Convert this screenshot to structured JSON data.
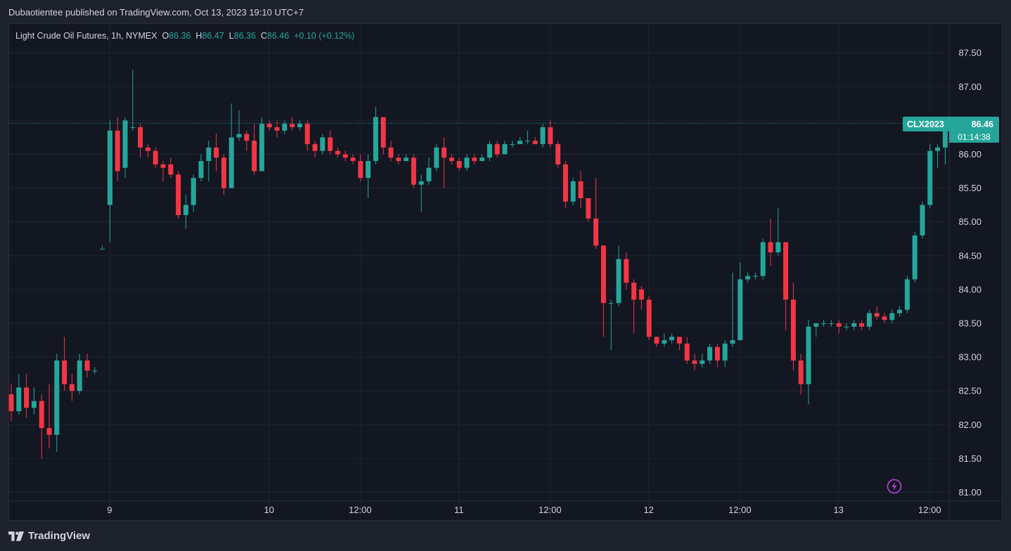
{
  "header": {
    "published": "Dubaotientee published on TradingView.com, Oct 13, 2023 19:10 UTC+7"
  },
  "legend": {
    "symbol": "Light Crude Oil Futures, 1h, NYMEX",
    "open_label": "O",
    "open": "86.36",
    "high_label": "H",
    "high": "86.47",
    "low_label": "L",
    "low": "86.36",
    "close_label": "C",
    "close": "86.46",
    "change": "+0.10 (+0.12%)"
  },
  "price_tag": {
    "symbol": "CLX2023",
    "price": "86.46",
    "countdown": "01:14:38"
  },
  "footer": {
    "brand": "TradingView"
  },
  "icons": {
    "brand_logo": "tradingview-logo-icon",
    "flash": "lightning-bolt-icon"
  },
  "colors": {
    "up": "#26a69a",
    "down": "#f23645",
    "background": "#131722",
    "grid": "#1f2330",
    "text": "#d1d4dc",
    "last_price_line": "#26a69a"
  },
  "chart_data": {
    "type": "candlestick",
    "title": "Light Crude Oil Futures, 1h, NYMEX",
    "ylim": [
      80.9,
      87.7
    ],
    "y_ticks": [
      "87.50",
      "87.00",
      "86.50",
      "86.00",
      "85.50",
      "85.00",
      "84.50",
      "84.00",
      "83.50",
      "83.00",
      "82.50",
      "82.00",
      "81.50",
      "81.00"
    ],
    "x_ticks": [
      {
        "label": "9",
        "index": 13
      },
      {
        "label": "10",
        "index": 34
      },
      {
        "label": "12:00",
        "index": 46
      },
      {
        "label": "11",
        "index": 59
      },
      {
        "label": "12:00",
        "index": 71
      },
      {
        "label": "12",
        "index": 84
      },
      {
        "label": "12:00",
        "index": 96
      },
      {
        "label": "13",
        "index": 109
      },
      {
        "label": "12:00",
        "index": 121
      }
    ],
    "last_price": 86.46,
    "candles": [
      [
        82.45,
        82.2,
        82.6,
        82.05
      ],
      [
        82.2,
        82.55,
        82.75,
        82.15
      ],
      [
        82.55,
        82.25,
        82.75,
        82.1
      ],
      [
        82.25,
        82.35,
        82.55,
        82.15
      ],
      [
        82.35,
        81.95,
        82.45,
        81.5
      ],
      [
        81.95,
        81.85,
        82.6,
        81.65
      ],
      [
        81.85,
        82.95,
        83.05,
        81.6
      ],
      [
        82.95,
        82.6,
        83.3,
        82.5
      ],
      [
        82.6,
        82.5,
        82.75,
        82.35
      ],
      [
        82.5,
        82.95,
        83.05,
        82.45
      ],
      [
        82.95,
        82.8,
        83.05,
        82.7
      ],
      [
        82.8,
        82.8,
        82.85,
        82.75
      ],
      [
        84.6,
        84.6,
        84.65,
        84.6
      ],
      [
        85.25,
        86.35,
        86.5,
        84.7
      ],
      [
        86.35,
        85.75,
        86.55,
        85.6
      ],
      [
        85.8,
        86.5,
        86.55,
        85.65
      ],
      [
        86.4,
        86.4,
        87.25,
        86.35
      ],
      [
        86.4,
        86.1,
        86.45,
        85.95
      ],
      [
        86.1,
        86.05,
        86.15,
        85.95
      ],
      [
        86.05,
        85.85,
        86.1,
        85.8
      ],
      [
        85.85,
        85.8,
        85.9,
        85.6
      ],
      [
        85.85,
        85.7,
        85.95,
        85.65
      ],
      [
        85.7,
        85.1,
        85.75,
        85.05
      ],
      [
        85.1,
        85.25,
        85.4,
        84.9
      ],
      [
        85.25,
        85.65,
        85.7,
        85.15
      ],
      [
        85.65,
        85.9,
        86.0,
        85.6
      ],
      [
        85.9,
        86.1,
        86.2,
        85.6
      ],
      [
        86.1,
        85.95,
        86.3,
        85.75
      ],
      [
        85.95,
        85.5,
        86.0,
        85.4
      ],
      [
        85.5,
        86.25,
        86.75,
        85.5
      ],
      [
        86.25,
        86.3,
        86.65,
        86.2
      ],
      [
        86.3,
        86.2,
        86.35,
        86.05
      ],
      [
        86.2,
        85.75,
        86.45,
        85.7
      ],
      [
        85.75,
        86.45,
        86.55,
        85.75
      ],
      [
        86.45,
        86.4,
        86.5,
        86.35
      ],
      [
        86.4,
        86.35,
        86.5,
        86.25
      ],
      [
        86.35,
        86.45,
        86.5,
        86.3
      ],
      [
        86.45,
        86.4,
        86.55,
        86.35
      ],
      [
        86.4,
        86.45,
        86.5,
        86.35
      ],
      [
        86.45,
        86.15,
        86.5,
        86.05
      ],
      [
        86.15,
        86.05,
        86.2,
        85.95
      ],
      [
        86.05,
        86.25,
        86.3,
        86.0
      ],
      [
        86.25,
        86.05,
        86.35,
        86.0
      ],
      [
        86.05,
        86.0,
        86.1,
        85.95
      ],
      [
        86.0,
        85.95,
        86.05,
        85.9
      ],
      [
        85.95,
        85.9,
        86.0,
        85.85
      ],
      [
        85.9,
        85.65,
        86.0,
        85.6
      ],
      [
        85.65,
        85.9,
        86.0,
        85.35
      ],
      [
        85.9,
        86.55,
        86.7,
        85.85
      ],
      [
        86.55,
        86.1,
        86.55,
        86.0
      ],
      [
        86.1,
        85.95,
        86.2,
        85.9
      ],
      [
        85.95,
        85.9,
        86.0,
        85.85
      ],
      [
        85.9,
        85.95,
        86.0,
        85.9
      ],
      [
        85.95,
        85.55,
        86.0,
        85.5
      ],
      [
        85.55,
        85.6,
        85.7,
        85.15
      ],
      [
        85.6,
        85.8,
        85.95,
        85.55
      ],
      [
        85.8,
        86.1,
        86.15,
        85.75
      ],
      [
        86.1,
        85.95,
        86.25,
        85.5
      ],
      [
        85.95,
        85.9,
        86.0,
        85.85
      ],
      [
        85.9,
        85.8,
        85.95,
        85.75
      ],
      [
        85.8,
        85.95,
        86.0,
        85.75
      ],
      [
        85.95,
        85.9,
        86.0,
        85.85
      ],
      [
        85.9,
        85.95,
        86.0,
        85.9
      ],
      [
        85.95,
        86.15,
        86.2,
        85.9
      ],
      [
        86.15,
        86.0,
        86.2,
        85.95
      ],
      [
        86.0,
        86.15,
        86.2,
        86.0
      ],
      [
        86.15,
        86.15,
        86.2,
        86.1
      ],
      [
        86.15,
        86.2,
        86.25,
        86.15
      ],
      [
        86.2,
        86.2,
        86.35,
        86.15
      ],
      [
        86.2,
        86.15,
        86.25,
        86.15
      ],
      [
        86.15,
        86.4,
        86.45,
        86.1
      ],
      [
        86.4,
        86.15,
        86.5,
        86.1
      ],
      [
        86.15,
        85.85,
        86.2,
        85.8
      ],
      [
        85.85,
        85.3,
        85.9,
        85.2
      ],
      [
        85.3,
        85.6,
        85.65,
        85.25
      ],
      [
        85.6,
        85.35,
        85.75,
        85.2
      ],
      [
        85.35,
        85.05,
        85.35,
        85.0
      ],
      [
        85.05,
        84.65,
        85.65,
        84.6
      ],
      [
        84.65,
        83.8,
        84.65,
        83.3
      ],
      [
        83.8,
        83.8,
        83.85,
        83.1
      ],
      [
        83.8,
        84.45,
        84.65,
        83.75
      ],
      [
        84.45,
        84.1,
        84.55,
        84.0
      ],
      [
        84.1,
        83.85,
        84.15,
        83.35
      ],
      [
        84.0,
        83.85,
        84.05,
        83.7
      ],
      [
        83.85,
        83.3,
        83.9,
        83.25
      ],
      [
        83.3,
        83.2,
        83.25,
        83.15
      ],
      [
        83.2,
        83.25,
        83.35,
        83.15
      ],
      [
        83.25,
        83.3,
        83.35,
        83.2
      ],
      [
        83.3,
        83.2,
        83.3,
        83.1
      ],
      [
        83.2,
        82.95,
        83.3,
        82.9
      ],
      [
        82.95,
        82.9,
        83.05,
        82.8
      ],
      [
        82.9,
        82.95,
        83.05,
        82.85
      ],
      [
        82.95,
        83.15,
        83.2,
        82.9
      ],
      [
        83.15,
        82.95,
        83.2,
        82.85
      ],
      [
        82.95,
        83.2,
        83.25,
        82.85
      ],
      [
        83.2,
        83.25,
        84.25,
        83.15
      ],
      [
        83.25,
        84.15,
        84.4,
        83.9
      ],
      [
        84.15,
        84.2,
        84.25,
        84.1
      ],
      [
        84.2,
        84.2,
        84.25,
        84.15
      ],
      [
        84.2,
        84.7,
        84.75,
        84.15
      ],
      [
        84.7,
        84.55,
        85.05,
        84.35
      ],
      [
        84.55,
        84.7,
        85.2,
        84.5
      ],
      [
        84.7,
        83.85,
        84.7,
        83.4
      ],
      [
        83.85,
        82.95,
        84.1,
        82.8
      ],
      [
        82.95,
        82.6,
        83.05,
        82.45
      ],
      [
        82.6,
        83.45,
        83.55,
        82.3
      ],
      [
        83.45,
        83.5,
        83.5,
        83.3
      ],
      [
        83.5,
        83.5,
        83.55,
        83.45
      ],
      [
        83.5,
        83.5,
        83.55,
        83.45
      ],
      [
        83.5,
        83.45,
        83.55,
        83.35
      ],
      [
        83.45,
        83.45,
        83.5,
        83.4
      ],
      [
        83.45,
        83.5,
        83.55,
        83.4
      ],
      [
        83.5,
        83.45,
        83.55,
        83.4
      ],
      [
        83.45,
        83.65,
        83.7,
        83.4
      ],
      [
        83.65,
        83.6,
        83.75,
        83.55
      ],
      [
        83.6,
        83.55,
        83.65,
        83.5
      ],
      [
        83.55,
        83.65,
        83.7,
        83.5
      ],
      [
        83.65,
        83.7,
        83.75,
        83.6
      ],
      [
        83.7,
        84.15,
        84.2,
        83.65
      ],
      [
        84.15,
        84.8,
        84.85,
        84.1
      ],
      [
        84.8,
        85.25,
        85.3,
        84.75
      ],
      [
        85.25,
        86.05,
        86.15,
        85.2
      ],
      [
        86.05,
        86.1,
        86.15,
        85.8
      ],
      [
        86.1,
        86.4,
        86.5,
        85.85
      ],
      [
        86.36,
        86.46,
        86.47,
        86.36
      ]
    ]
  }
}
